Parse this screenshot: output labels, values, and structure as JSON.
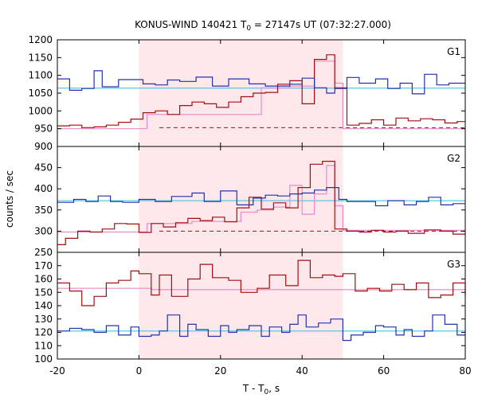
{
  "chart_data": {
    "type": "line",
    "title_main": "KONUS-WIND 140421 T",
    "title_sub": "0",
    "title_rest": " = 27147s UT (07:32:27.000)",
    "xlabel_main": "T - T",
    "xlabel_sub": "0",
    "xlabel_rest": ", s",
    "ylabel": "counts / sec",
    "xlim": [
      -20,
      80
    ],
    "xticks": [
      -20,
      0,
      20,
      40,
      60,
      80
    ],
    "shaded_interval": [
      0,
      50
    ],
    "colors": {
      "shade": "#ffe8ec",
      "red": "#a01010",
      "blue": "#2233aa",
      "pink": "#ee88cc",
      "cyan": "#33bbdd"
    },
    "panels": [
      {
        "name": "G1",
        "ylim": [
          900,
          1200
        ],
        "yticks": [
          900,
          950,
          1000,
          1050,
          1100,
          1150,
          1200
        ],
        "blue_level": 1064,
        "red_dashed_level": 953,
        "blue": {
          "x": [
            -20,
            -17,
            -14,
            -11,
            -9,
            -5,
            1,
            4,
            7,
            10,
            14,
            18,
            22,
            27,
            31,
            34,
            37,
            40,
            43,
            46,
            48,
            51,
            54,
            58,
            61,
            64,
            67,
            70,
            73,
            76,
            80
          ],
          "y": [
            1090,
            1058,
            1063,
            1113,
            1068,
            1088,
            1076,
            1073,
            1087,
            1083,
            1095,
            1070,
            1090,
            1076,
            1070,
            1070,
            1075,
            1092,
            1065,
            1050,
            1063,
            1094,
            1078,
            1090,
            1063,
            1078,
            1048,
            1103,
            1073,
            1078,
            1078
          ]
        },
        "red": {
          "x": [
            -20,
            -17,
            -14,
            -11,
            -8,
            -5,
            -2,
            1,
            4,
            7,
            10,
            13,
            16,
            19,
            22,
            25,
            28,
            31,
            34,
            37,
            40,
            43,
            46,
            48,
            51,
            54,
            57,
            60,
            63,
            66,
            69,
            72,
            75,
            78,
            80
          ],
          "y": [
            958,
            960,
            953,
            955,
            960,
            968,
            977,
            995,
            1000,
            990,
            1015,
            1025,
            1020,
            1010,
            1025,
            1040,
            1050,
            1052,
            1075,
            1085,
            1020,
            1145,
            1158,
            1065,
            960,
            965,
            975,
            960,
            980,
            972,
            978,
            975,
            966,
            970,
            970
          ]
        },
        "pink": {
          "x": [
            -20,
            0,
            2,
            27,
            30,
            33,
            37,
            40,
            43,
            46,
            48,
            50,
            80
          ],
          "y": [
            950,
            950,
            990,
            990,
            1065,
            1065,
            1070,
            1070,
            1140,
            1140,
            1078,
            950,
            950
          ]
        }
      },
      {
        "name": "G2",
        "ylim": [
          250,
          500
        ],
        "yticks": [
          250,
          300,
          350,
          400,
          450
        ],
        "blue_level": 372,
        "red_dashed_level": 300,
        "blue": {
          "x": [
            -20,
            -16,
            -13,
            -10,
            -7,
            -4,
            0,
            4,
            8,
            13,
            16,
            20,
            24,
            28,
            31,
            34,
            37,
            40,
            43,
            46,
            49,
            51,
            55,
            58,
            61,
            65,
            68,
            71,
            74,
            77,
            80
          ],
          "y": [
            368,
            375,
            370,
            383,
            370,
            368,
            375,
            370,
            382,
            390,
            370,
            395,
            362,
            378,
            385,
            383,
            388,
            390,
            397,
            403,
            375,
            370,
            370,
            360,
            372,
            362,
            370,
            380,
            362,
            365,
            365
          ]
        },
        "red": {
          "x": [
            -20,
            -18,
            -15,
            -12,
            -9,
            -6,
            -3,
            0,
            3,
            6,
            9,
            12,
            15,
            18,
            21,
            24,
            27,
            30,
            33,
            36,
            39,
            42,
            45,
            48,
            51,
            54,
            57,
            60,
            63,
            66,
            70,
            74,
            77,
            80
          ],
          "y": [
            268,
            283,
            300,
            298,
            305,
            318,
            317,
            297,
            318,
            310,
            320,
            330,
            325,
            333,
            322,
            355,
            380,
            352,
            367,
            355,
            403,
            458,
            465,
            305,
            300,
            298,
            302,
            298,
            300,
            295,
            303,
            300,
            293,
            293
          ]
        },
        "pink": {
          "x": [
            -20,
            0,
            2,
            10,
            13,
            20,
            25,
            29,
            33,
            37,
            40,
            43,
            46,
            48,
            50,
            80
          ],
          "y": [
            298,
            298,
            318,
            318,
            323,
            323,
            345,
            350,
            357,
            408,
            340,
            388,
            455,
            360,
            302,
            302
          ]
        }
      },
      {
        "name": "G3",
        "ylim": [
          100,
          180
        ],
        "yticks": [
          100,
          110,
          120,
          130,
          140,
          150,
          160,
          170
        ],
        "blue_level": 121,
        "red_dashed_level": null,
        "blue": {
          "x": [
            -20,
            -17,
            -14,
            -11,
            -8,
            -5,
            -2,
            0,
            3,
            5,
            7,
            10,
            12,
            14,
            17,
            20,
            22,
            24,
            27,
            30,
            32,
            35,
            37,
            39,
            41,
            44,
            47,
            50,
            52,
            55,
            58,
            60,
            63,
            65,
            67,
            70,
            72,
            75,
            78,
            80
          ],
          "y": [
            121,
            123,
            122,
            120,
            125,
            118,
            124,
            117,
            118,
            121,
            133,
            117,
            126,
            122,
            117,
            125,
            120,
            122,
            125,
            117,
            124,
            120,
            126,
            133,
            124,
            127,
            130,
            114,
            118,
            120,
            125,
            124,
            118,
            122,
            117,
            121,
            133,
            126,
            118,
            118
          ]
        },
        "red": {
          "x": [
            -20,
            -17,
            -14,
            -11,
            -8,
            -5,
            -2,
            0,
            3,
            5,
            8,
            12,
            15,
            18,
            22,
            25,
            29,
            32,
            36,
            39,
            42,
            45,
            48,
            50,
            53,
            56,
            59,
            62,
            65,
            68,
            71,
            74,
            77,
            80
          ],
          "y": [
            157,
            151,
            140,
            147,
            157,
            159,
            166,
            164,
            148,
            163,
            147,
            160,
            171,
            161,
            159,
            150,
            153,
            163,
            155,
            174,
            161,
            163,
            162,
            164,
            151,
            153,
            151,
            156,
            152,
            157,
            146,
            148,
            157,
            147
          ]
        },
        "pink": {
          "x": [
            -20,
            0,
            3,
            80
          ],
          "y": [
            153,
            153,
            152,
            152
          ]
        }
      }
    ]
  }
}
